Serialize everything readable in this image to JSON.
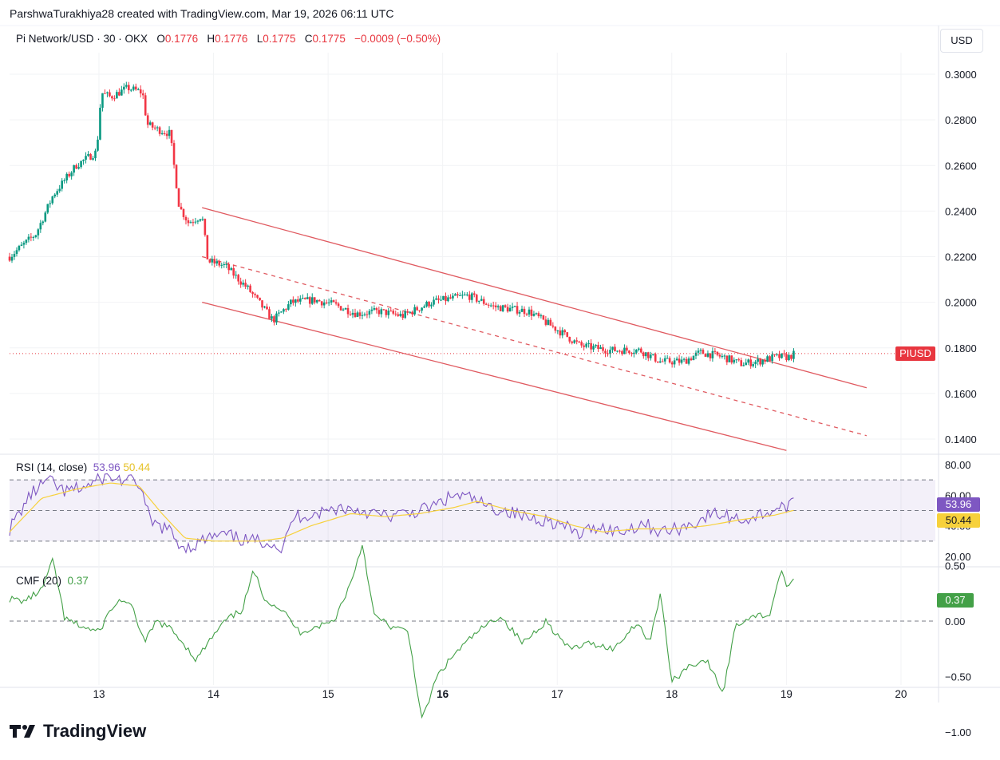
{
  "header": {
    "attribution": "ParshwaTurakhiya28 created with TradingView.com, Mar 19, 2026 06:11 UTC"
  },
  "legend": {
    "symbol": "Pi Network/USD · 30 · OKX",
    "o_label": "O",
    "o_value": "0.1776",
    "h_label": "H",
    "h_value": "0.1776",
    "l_label": "L",
    "l_value": "0.1775",
    "c_label": "C",
    "c_value": "0.1775",
    "change": "−0.0009 (−0.50%)"
  },
  "currency_button": "USD",
  "price_tag": {
    "label": "PIUSD",
    "color": "#e8363f"
  },
  "rsi": {
    "title": "RSI (14, close)",
    "value": "53.96",
    "ma_value": "50.44",
    "value_tag": "53.96",
    "ma_tag": "50.44",
    "line_color": "#7e57c2",
    "ma_color": "#f7d13b",
    "axis_ticks": [
      "80.00",
      "60.00",
      "40.00",
      "20.00"
    ]
  },
  "cmf": {
    "title": "CMF (20)",
    "value": "0.37",
    "value_tag": "0.37",
    "line_color": "#43a047",
    "axis_ticks": [
      "0.50",
      "0.00",
      "−0.50",
      "−1.00"
    ]
  },
  "brand": {
    "name": "TradingView",
    "logo_icon": "tradingview-logo-icon"
  },
  "colors": {
    "up": "#089981",
    "down": "#f23645",
    "channel": "#e05a60"
  },
  "chart_data": {
    "type": "candlestick",
    "title": "Pi Network/USD · 30 · OKX",
    "y_ticks": [
      "0.3000",
      "0.2800",
      "0.2600",
      "0.2400",
      "0.2200",
      "0.2000",
      "0.1800",
      "0.1600",
      "0.1400"
    ],
    "x_ticks": [
      "13",
      "14",
      "15",
      "16",
      "17",
      "18",
      "19",
      "20"
    ],
    "x_bold": "16",
    "ylim": [
      0.1345,
      0.3025
    ],
    "xlim": [
      12.22,
      20.3
    ],
    "last_price": 0.1775,
    "anchors": [
      [
        12.22,
        0.22
      ],
      [
        12.45,
        0.23
      ],
      [
        12.6,
        0.247
      ],
      [
        12.8,
        0.26
      ],
      [
        12.98,
        0.266
      ],
      [
        13.02,
        0.292
      ],
      [
        13.1,
        0.29
      ],
      [
        13.25,
        0.294
      ],
      [
        13.38,
        0.292
      ],
      [
        13.42,
        0.278
      ],
      [
        13.5,
        0.276
      ],
      [
        13.62,
        0.274
      ],
      [
        13.7,
        0.242
      ],
      [
        13.78,
        0.235
      ],
      [
        13.9,
        0.238
      ],
      [
        13.95,
        0.218
      ],
      [
        14.1,
        0.216
      ],
      [
        14.3,
        0.206
      ],
      [
        14.52,
        0.192
      ],
      [
        14.68,
        0.2
      ],
      [
        14.88,
        0.201
      ],
      [
        15.05,
        0.199
      ],
      [
        15.25,
        0.195
      ],
      [
        15.45,
        0.196
      ],
      [
        15.65,
        0.194
      ],
      [
        15.9,
        0.2
      ],
      [
        16.22,
        0.203
      ],
      [
        16.45,
        0.198
      ],
      [
        16.75,
        0.196
      ],
      [
        17.0,
        0.188
      ],
      [
        17.2,
        0.181
      ],
      [
        17.45,
        0.179
      ],
      [
        17.72,
        0.179
      ],
      [
        17.9,
        0.174
      ],
      [
        18.1,
        0.174
      ],
      [
        18.25,
        0.178
      ],
      [
        18.45,
        0.176
      ],
      [
        18.6,
        0.173
      ],
      [
        18.75,
        0.174
      ],
      [
        18.9,
        0.176
      ],
      [
        19.02,
        0.176
      ],
      [
        19.08,
        0.1776
      ]
    ],
    "channel": {
      "upper": [
        [
          13.9,
          0.2415
        ],
        [
          19.7,
          0.1625
        ]
      ],
      "lower": [
        [
          13.9,
          0.2
        ],
        [
          19.0,
          0.135
        ]
      ],
      "mid": [
        [
          13.9,
          0.22
        ],
        [
          19.7,
          0.1415
        ]
      ]
    },
    "rsi_series": {
      "ylim": [
        15,
        90
      ],
      "band": [
        30,
        70
      ],
      "midline": 50,
      "anchors": [
        [
          12.22,
          38
        ],
        [
          12.4,
          60
        ],
        [
          12.55,
          70
        ],
        [
          12.7,
          62
        ],
        [
          12.9,
          66
        ],
        [
          13.05,
          72
        ],
        [
          13.2,
          70
        ],
        [
          13.35,
          68
        ],
        [
          13.45,
          42
        ],
        [
          13.6,
          38
        ],
        [
          13.7,
          28
        ],
        [
          13.8,
          26
        ],
        [
          13.95,
          32
        ],
        [
          14.1,
          34
        ],
        [
          14.3,
          30
        ],
        [
          14.5,
          30
        ],
        [
          14.6,
          24
        ],
        [
          14.7,
          46
        ],
        [
          14.9,
          48
        ],
        [
          15.1,
          52
        ],
        [
          15.3,
          50
        ],
        [
          15.5,
          46
        ],
        [
          15.7,
          48
        ],
        [
          15.9,
          52
        ],
        [
          16.1,
          60
        ],
        [
          16.25,
          58
        ],
        [
          16.4,
          52
        ],
        [
          16.55,
          50
        ],
        [
          16.7,
          46
        ],
        [
          16.9,
          44
        ],
        [
          17.05,
          40
        ],
        [
          17.2,
          34
        ],
        [
          17.35,
          40
        ],
        [
          17.55,
          36
        ],
        [
          17.75,
          42
        ],
        [
          17.9,
          36
        ],
        [
          18.05,
          38
        ],
        [
          18.2,
          42
        ],
        [
          18.35,
          48
        ],
        [
          18.5,
          46
        ],
        [
          18.65,
          44
        ],
        [
          18.8,
          48
        ],
        [
          18.95,
          52
        ],
        [
          19.08,
          54
        ]
      ],
      "ma_anchors": [
        [
          12.22,
          36
        ],
        [
          12.5,
          58
        ],
        [
          12.8,
          64
        ],
        [
          13.1,
          68
        ],
        [
          13.35,
          66
        ],
        [
          13.55,
          48
        ],
        [
          13.75,
          32
        ],
        [
          14.0,
          30
        ],
        [
          14.4,
          30
        ],
        [
          14.6,
          32
        ],
        [
          14.85,
          40
        ],
        [
          15.2,
          48
        ],
        [
          15.5,
          46
        ],
        [
          15.8,
          48
        ],
        [
          16.1,
          52
        ],
        [
          16.3,
          56
        ],
        [
          16.6,
          50
        ],
        [
          16.9,
          46
        ],
        [
          17.15,
          40
        ],
        [
          17.4,
          36
        ],
        [
          17.7,
          38
        ],
        [
          18.0,
          38
        ],
        [
          18.3,
          40
        ],
        [
          18.6,
          44
        ],
        [
          18.9,
          47
        ],
        [
          19.08,
          50.44
        ]
      ]
    },
    "cmf_series": {
      "ylim": [
        -1.05,
        0.55
      ],
      "anchors": [
        [
          12.22,
          0.2
        ],
        [
          12.35,
          0.18
        ],
        [
          12.5,
          0.28
        ],
        [
          12.6,
          0.55
        ],
        [
          12.7,
          0.02
        ],
        [
          12.85,
          -0.05
        ],
        [
          13.0,
          -0.1
        ],
        [
          13.1,
          0.1
        ],
        [
          13.2,
          0.2
        ],
        [
          13.3,
          0.1
        ],
        [
          13.4,
          -0.2
        ],
        [
          13.5,
          0.0
        ],
        [
          13.6,
          -0.05
        ],
        [
          13.7,
          -0.15
        ],
        [
          13.85,
          -0.35
        ],
        [
          13.95,
          -0.2
        ],
        [
          14.1,
          0.0
        ],
        [
          14.25,
          0.1
        ],
        [
          14.35,
          0.45
        ],
        [
          14.45,
          0.2
        ],
        [
          14.6,
          0.1
        ],
        [
          14.75,
          -0.1
        ],
        [
          14.9,
          -0.05
        ],
        [
          15.05,
          0.0
        ],
        [
          15.2,
          0.35
        ],
        [
          15.3,
          0.7
        ],
        [
          15.4,
          0.05
        ],
        [
          15.55,
          -0.05
        ],
        [
          15.7,
          -0.1
        ],
        [
          15.82,
          -0.9
        ],
        [
          15.95,
          -0.5
        ],
        [
          16.1,
          -0.3
        ],
        [
          16.3,
          -0.1
        ],
        [
          16.5,
          0.05
        ],
        [
          16.7,
          -0.2
        ],
        [
          16.9,
          0.0
        ],
        [
          17.1,
          -0.25
        ],
        [
          17.3,
          -0.2
        ],
        [
          17.5,
          -0.25
        ],
        [
          17.7,
          0.0
        ],
        [
          17.8,
          -0.2
        ],
        [
          17.9,
          0.25
        ],
        [
          18.0,
          -0.55
        ],
        [
          18.15,
          -0.4
        ],
        [
          18.3,
          -0.35
        ],
        [
          18.45,
          -0.65
        ],
        [
          18.55,
          -0.05
        ],
        [
          18.7,
          0.05
        ],
        [
          18.85,
          0.05
        ],
        [
          18.95,
          0.45
        ],
        [
          19.02,
          0.3
        ],
        [
          19.08,
          0.37
        ]
      ]
    }
  }
}
